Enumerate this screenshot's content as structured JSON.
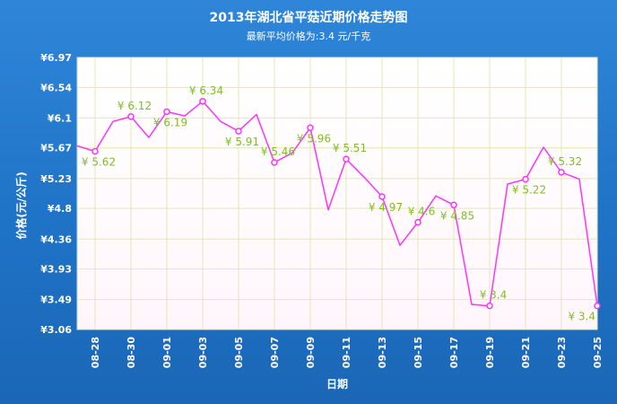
{
  "chart_data": {
    "type": "line",
    "title": "2013年湖北省平菇近期价格走势图",
    "subtitle": "最新平均价格为:3.4 元/千克",
    "xlabel": "日期",
    "ylabel": "价格(元/公斤)",
    "currency_prefix": "¥",
    "y_ticks": [
      "6.97",
      "6.54",
      "6.1",
      "5.67",
      "5.23",
      "4.8",
      "4.36",
      "3.93",
      "3.49",
      "3.06"
    ],
    "ylim": [
      3.06,
      6.97
    ],
    "x_tick_labels": [
      "08-28",
      "08-30",
      "09-01",
      "09-03",
      "09-05",
      "09-07",
      "09-09",
      "09-11",
      "09-13",
      "09-15",
      "09-17",
      "09-19",
      "09-21",
      "09-23",
      "09-25"
    ],
    "series": [
      {
        "points": [
          {
            "y": 5.7
          },
          {
            "y": 5.62,
            "marker": true
          },
          {
            "y": 6.05
          },
          {
            "y": 6.12,
            "marker": true
          },
          {
            "y": 5.82
          },
          {
            "y": 6.19,
            "marker": true
          },
          {
            "y": 6.13
          },
          {
            "y": 6.34,
            "marker": true
          },
          {
            "y": 6.05
          },
          {
            "y": 5.91,
            "marker": true
          },
          {
            "y": 6.15
          },
          {
            "y": 5.46,
            "marker": true
          },
          {
            "y": 5.6
          },
          {
            "y": 5.96,
            "marker": true
          },
          {
            "y": 4.78
          },
          {
            "y": 5.51,
            "marker": true
          },
          {
            "y": 5.25
          },
          {
            "y": 4.97,
            "marker": true
          },
          {
            "y": 4.27
          },
          {
            "y": 4.6,
            "marker": true
          },
          {
            "y": 4.98
          },
          {
            "y": 4.85,
            "marker": true
          },
          {
            "y": 3.42
          },
          {
            "y": 3.4,
            "marker": true
          },
          {
            "y": 5.15
          },
          {
            "y": 5.22,
            "marker": true
          },
          {
            "y": 5.68
          },
          {
            "y": 5.32,
            "marker": true
          },
          {
            "y": 5.22
          },
          {
            "y": 3.4,
            "marker": true
          }
        ]
      }
    ],
    "colors": {
      "line": "#ff33ff",
      "value_label": "#7fbf1f",
      "axis_text": "#ffffff",
      "plot_background": "#ffffff",
      "grid": "#e6e6b8"
    },
    "grid": true,
    "legend": "none"
  }
}
